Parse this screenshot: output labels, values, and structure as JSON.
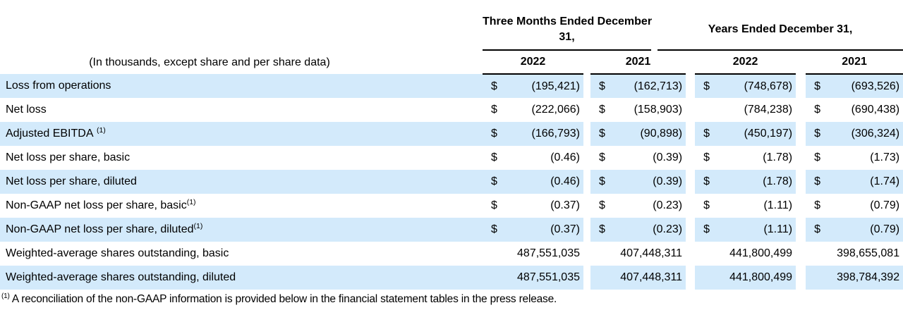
{
  "document": {
    "unit_note": "(In thousands, except share and per share data)",
    "column_groups": [
      {
        "title_lines": [
          "Three Months Ended December",
          "31,"
        ]
      },
      {
        "title_lines": [
          "Years Ended December 31,"
        ]
      }
    ],
    "year_columns": [
      "2022",
      "2021",
      "2022",
      "2021"
    ],
    "rows": [
      {
        "label": "Loss from operations",
        "sup": "",
        "sup_spaced": false,
        "cells": [
          [
            "$",
            "(195,421)"
          ],
          [
            "$",
            "(162,713)"
          ],
          [
            "$",
            "(748,678)"
          ],
          [
            "$",
            "(693,526)"
          ]
        ]
      },
      {
        "label": "Net loss",
        "sup": "",
        "sup_spaced": false,
        "cells": [
          [
            "$",
            "(222,066)"
          ],
          [
            "$",
            "(158,903)"
          ],
          [
            "",
            "(784,238)"
          ],
          [
            "$",
            "(690,438)"
          ]
        ]
      },
      {
        "label": "Adjusted EBITDA",
        "sup": "(1)",
        "sup_spaced": true,
        "cells": [
          [
            "$",
            "(166,793)"
          ],
          [
            "$",
            "(90,898)"
          ],
          [
            "$",
            "(450,197)"
          ],
          [
            "$",
            "(306,324)"
          ]
        ]
      },
      {
        "label": "Net loss per share, basic",
        "sup": "",
        "sup_spaced": false,
        "cells": [
          [
            "$",
            "(0.46)"
          ],
          [
            "$",
            "(0.39)"
          ],
          [
            "$",
            "(1.78)"
          ],
          [
            "$",
            "(1.73)"
          ]
        ]
      },
      {
        "label": "Net loss per share, diluted",
        "sup": "",
        "sup_spaced": false,
        "cells": [
          [
            "$",
            "(0.46)"
          ],
          [
            "$",
            "(0.39)"
          ],
          [
            "$",
            "(1.78)"
          ],
          [
            "$",
            "(1.74)"
          ]
        ]
      },
      {
        "label": "Non-GAAP net loss per share, basic",
        "sup": "(1)",
        "sup_spaced": false,
        "cells": [
          [
            "$",
            "(0.37)"
          ],
          [
            "$",
            "(0.23)"
          ],
          [
            "$",
            "(1.11)"
          ],
          [
            "$",
            "(0.79)"
          ]
        ]
      },
      {
        "label": "Non-GAAP net loss per share, diluted",
        "sup": "(1)",
        "sup_spaced": false,
        "cells": [
          [
            "$",
            "(0.37)"
          ],
          [
            "$",
            "(0.23)"
          ],
          [
            "$",
            "(1.11)"
          ],
          [
            "$",
            "(0.79)"
          ]
        ]
      },
      {
        "label": "Weighted-average shares outstanding, basic",
        "sup": "",
        "sup_spaced": false,
        "cells": [
          [
            "",
            "487,551,035"
          ],
          [
            "",
            "407,448,311"
          ],
          [
            "",
            "441,800,499"
          ],
          [
            "",
            "398,655,081"
          ]
        ]
      },
      {
        "label": "Weighted-average shares outstanding, diluted",
        "sup": "",
        "sup_spaced": false,
        "cells": [
          [
            "",
            "487,551,035"
          ],
          [
            "",
            "407,448,311"
          ],
          [
            "",
            "441,800,499"
          ],
          [
            "",
            "398,784,392"
          ]
        ]
      }
    ],
    "footnote": {
      "marker": "(1)",
      "text": "A reconciliation of the non-GAAP information is provided below in the financial statement tables in the press release."
    },
    "colors": {
      "row_highlight": "#d3eafb",
      "rule": "#000000",
      "text": "#000000"
    }
  }
}
